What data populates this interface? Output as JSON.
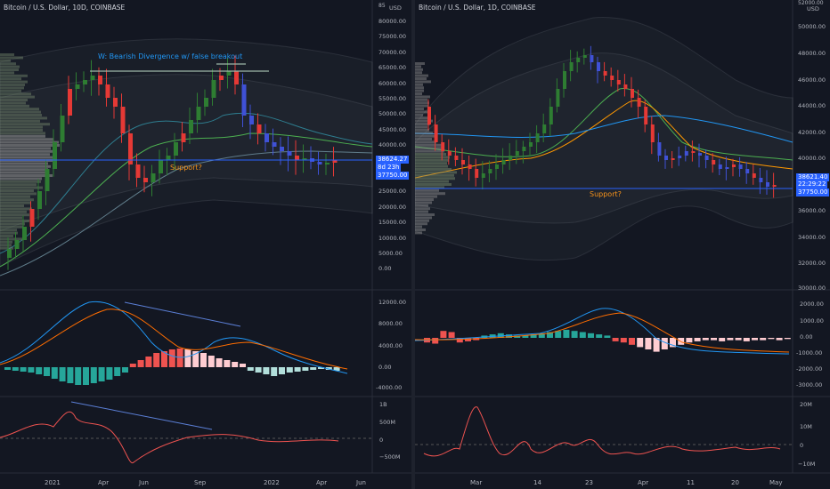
{
  "left": {
    "title": "Bitcoin / U.S. Dollar, 10D, COINBASE",
    "currency": "USD",
    "price_axis": [
      "85000.00",
      "80000.00",
      "75000.00",
      "70000.00",
      "65000.00",
      "60000.00",
      "55000.00",
      "50000.00",
      "45000.00",
      "40000.00",
      "35000.00",
      "30000.00",
      "25000.00",
      "20000.00",
      "15000.00",
      "10000.00",
      "5000.00",
      "0.00"
    ],
    "price_top_partial": "85",
    "annotation_divergence": "W: Bearish Divergence w/ false breakout",
    "annotation_support": "Support?",
    "last_price": "38624.27",
    "countdown": "8d 23h",
    "support_price": "37750.00",
    "macd_axis": [
      "12000.00",
      "8000.00",
      "4000.00",
      "0.00",
      "-4000.00"
    ],
    "volume_axis": [
      "1B",
      "500M",
      "0",
      "−500M"
    ],
    "dates": [
      "2021",
      "Apr",
      "Jun",
      "Sep",
      "2022",
      "Apr",
      "Jun"
    ]
  },
  "right": {
    "title": "Bitcoin / U.S. Dollar, 1D, COINBASE",
    "currency": "USD",
    "price_top_partial": "52000.00",
    "price_axis": [
      "50000.00",
      "48000.00",
      "46000.00",
      "44000.00",
      "42000.00",
      "40000.00",
      "38000.00",
      "36000.00",
      "34000.00",
      "32000.00",
      "30000.00"
    ],
    "annotation_support": "Support?",
    "last_price": "38621.40",
    "countdown": "22:29:22",
    "support_price": "37750.00",
    "macd_axis": [
      "2000.00",
      "1000.00",
      "0.00",
      "-1000.00",
      "-2000.00",
      "-3000.00"
    ],
    "volume_axis": [
      "20M",
      "10M",
      "0",
      "−10M"
    ],
    "dates": [
      "Mar",
      "14",
      "23",
      "Apr",
      "11",
      "20",
      "May"
    ]
  },
  "colors": {
    "up": "#26a69a",
    "down": "#ef5350",
    "up_candle": "#2e7d32",
    "down_candle": "#e53935",
    "blue_candle": "#3f51d6",
    "support_line": "#2962ff",
    "annotation_blue": "#2196f3",
    "annotation_orange": "#f7931a",
    "background": "#131722"
  }
}
